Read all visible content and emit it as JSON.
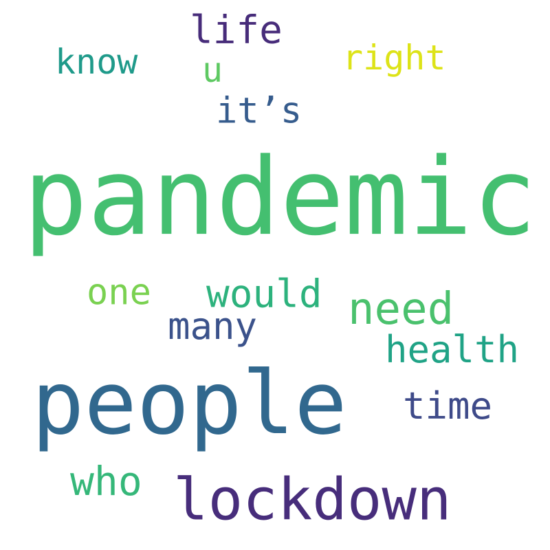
{
  "words": [
    {
      "text": "pandemic",
      "color": "#44bf70"
    },
    {
      "text": "people",
      "color": "#31688e"
    },
    {
      "text": "lockdown",
      "color": "#472d7b"
    },
    {
      "text": "life",
      "color": "#472c7a"
    },
    {
      "text": "know",
      "color": "#1f9a8a"
    },
    {
      "text": "u",
      "color": "#5ec962"
    },
    {
      "text": "right",
      "color": "#dde318"
    },
    {
      "text": "it’s",
      "color": "#365c8d"
    },
    {
      "text": "one",
      "color": "#7ad151"
    },
    {
      "text": "would",
      "color": "#2db27d"
    },
    {
      "text": "need",
      "color": "#4ac16d"
    },
    {
      "text": "many",
      "color": "#3b528b"
    },
    {
      "text": "health",
      "color": "#20a386"
    },
    {
      "text": "time",
      "color": "#3e4a89"
    },
    {
      "text": "who",
      "color": "#35b779"
    }
  ]
}
